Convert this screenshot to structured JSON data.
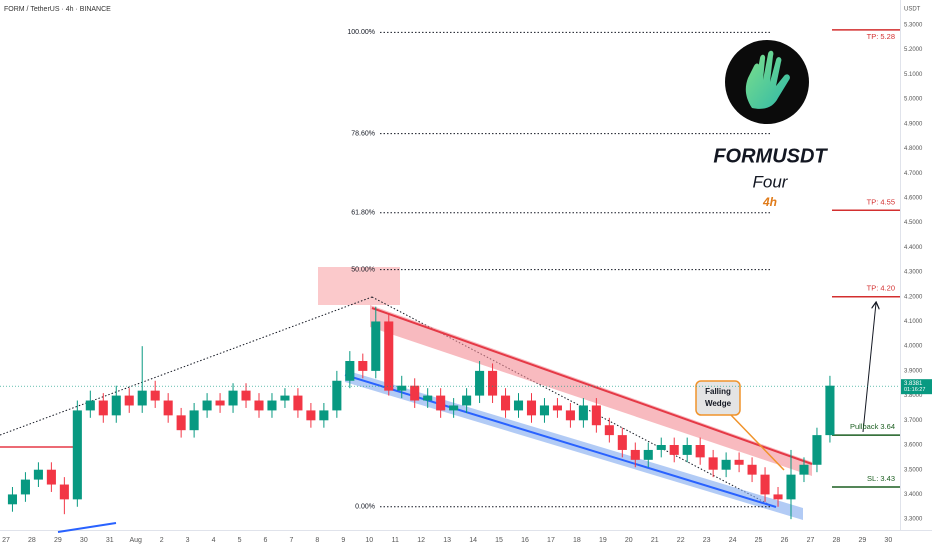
{
  "chart_data": {
    "type": "candlestick",
    "title": "FORM / TetherUS · 4h · BINANCE",
    "currency": "USDT",
    "symbol_title": "FORMUSDT",
    "subtitle": "Four",
    "timeframe": "4h",
    "callout_lines": [
      "Falling",
      "Wedge"
    ],
    "up_color": "#089981",
    "down_color": "#f23645",
    "grid": false,
    "xlim": [
      -0.23,
      34.45
    ],
    "ylim": [
      3.256,
      5.401
    ],
    "xticks": [
      {
        "value": 0,
        "label": "27"
      },
      {
        "value": 1,
        "label": "28"
      },
      {
        "value": 2,
        "label": "29"
      },
      {
        "value": 3,
        "label": "30"
      },
      {
        "value": 4,
        "label": "31"
      },
      {
        "value": 5,
        "label": "Aug"
      },
      {
        "value": 6,
        "label": "2"
      },
      {
        "value": 7,
        "label": "3"
      },
      {
        "value": 8,
        "label": "4"
      },
      {
        "value": 9,
        "label": "5"
      },
      {
        "value": 10,
        "label": "6"
      },
      {
        "value": 11,
        "label": "7"
      },
      {
        "value": 12,
        "label": "8"
      },
      {
        "value": 13,
        "label": "9"
      },
      {
        "value": 14,
        "label": "10"
      },
      {
        "value": 15,
        "label": "11"
      },
      {
        "value": 16,
        "label": "12"
      },
      {
        "value": 17,
        "label": "13"
      },
      {
        "value": 18,
        "label": "14"
      },
      {
        "value": 19,
        "label": "15"
      },
      {
        "value": 20,
        "label": "16"
      },
      {
        "value": 21,
        "label": "17"
      },
      {
        "value": 22,
        "label": "18"
      },
      {
        "value": 23,
        "label": "19"
      },
      {
        "value": 24,
        "label": "20"
      },
      {
        "value": 25,
        "label": "21"
      },
      {
        "value": 26,
        "label": "22"
      },
      {
        "value": 27,
        "label": "23"
      },
      {
        "value": 28,
        "label": "24"
      },
      {
        "value": 29,
        "label": "25"
      },
      {
        "value": 30,
        "label": "26"
      },
      {
        "value": 31,
        "label": "27"
      },
      {
        "value": 32,
        "label": "28"
      },
      {
        "value": 33,
        "label": "29"
      },
      {
        "value": 34,
        "label": "30"
      }
    ],
    "yticks": [
      {
        "value": 5.3,
        "label": "5.3000"
      },
      {
        "value": 5.2,
        "label": "5.2000"
      },
      {
        "value": 5.1,
        "label": "5.1000"
      },
      {
        "value": 5.0,
        "label": "5.0000"
      },
      {
        "value": 4.9,
        "label": "4.9000"
      },
      {
        "value": 4.8,
        "label": "4.8000"
      },
      {
        "value": 4.7,
        "label": "4.7000"
      },
      {
        "value": 4.6,
        "label": "4.6000"
      },
      {
        "value": 4.5,
        "label": "4.5000"
      },
      {
        "value": 4.4,
        "label": "4.4000"
      },
      {
        "value": 4.3,
        "label": "4.3000"
      },
      {
        "value": 4.2,
        "label": "4.2000"
      },
      {
        "value": 4.1,
        "label": "4.1000"
      },
      {
        "value": 4.0,
        "label": "4.0000"
      },
      {
        "value": 3.9,
        "label": "3.9000"
      },
      {
        "value": 3.8,
        "label": "3.8000"
      },
      {
        "value": 3.7,
        "label": "3.7000"
      },
      {
        "value": 3.6,
        "label": "3.6000"
      },
      {
        "value": 3.5,
        "label": "3.5000"
      },
      {
        "value": 3.4,
        "label": "3.4000"
      },
      {
        "value": 3.3,
        "label": "3.3000"
      }
    ],
    "x": [
      0.25,
      0.75,
      1.25,
      1.75,
      2.25,
      2.75,
      3.25,
      3.75,
      4.25,
      4.75,
      5.25,
      5.75,
      6.25,
      6.75,
      7.25,
      7.75,
      8.25,
      8.75,
      9.25,
      9.75,
      10.25,
      10.75,
      11.25,
      11.75,
      12.25,
      12.75,
      13.25,
      13.75,
      14.25,
      14.75,
      15.25,
      15.75,
      16.25,
      16.75,
      17.25,
      17.75,
      18.25,
      18.75,
      19.25,
      19.75,
      20.25,
      20.75,
      21.25,
      21.75,
      22.25,
      22.75,
      23.25,
      23.75,
      24.25,
      24.75,
      25.25,
      25.75,
      26.25,
      26.75,
      27.25,
      27.75,
      28.25,
      28.75,
      29.25,
      29.75,
      30.25,
      30.75,
      31.25,
      31.75
    ],
    "open": [
      3.36,
      3.4,
      3.46,
      3.5,
      3.44,
      3.38,
      3.74,
      3.78,
      3.72,
      3.8,
      3.76,
      3.82,
      3.78,
      3.72,
      3.66,
      3.74,
      3.78,
      3.76,
      3.82,
      3.78,
      3.74,
      3.78,
      3.8,
      3.74,
      3.7,
      3.74,
      3.86,
      3.94,
      3.9,
      4.1,
      3.82,
      3.84,
      3.78,
      3.8,
      3.74,
      3.76,
      3.8,
      3.9,
      3.8,
      3.74,
      3.78,
      3.72,
      3.76,
      3.74,
      3.7,
      3.76,
      3.68,
      3.64,
      3.58,
      3.54,
      3.58,
      3.6,
      3.56,
      3.6,
      3.55,
      3.5,
      3.54,
      3.52,
      3.48,
      3.4,
      3.38,
      3.48,
      3.52,
      3.64
    ],
    "high": [
      3.43,
      3.49,
      3.53,
      3.53,
      3.47,
      3.78,
      3.82,
      3.81,
      3.84,
      3.83,
      4.0,
      3.86,
      3.81,
      3.75,
      3.77,
      3.81,
      3.81,
      3.85,
      3.85,
      3.81,
      3.81,
      3.83,
      3.83,
      3.77,
      3.77,
      3.9,
      3.98,
      3.97,
      4.16,
      4.13,
      3.88,
      3.87,
      3.83,
      3.83,
      3.79,
      3.83,
      3.94,
      3.93,
      3.83,
      3.81,
      3.81,
      3.79,
      3.79,
      3.77,
      3.79,
      3.79,
      3.71,
      3.67,
      3.61,
      3.61,
      3.63,
      3.63,
      3.63,
      3.63,
      3.58,
      3.57,
      3.57,
      3.55,
      3.51,
      3.43,
      3.58,
      3.55,
      3.67,
      3.88
    ],
    "low": [
      3.33,
      3.37,
      3.43,
      3.41,
      3.32,
      3.35,
      3.71,
      3.69,
      3.69,
      3.73,
      3.73,
      3.75,
      3.69,
      3.63,
      3.63,
      3.71,
      3.73,
      3.73,
      3.75,
      3.71,
      3.71,
      3.75,
      3.71,
      3.67,
      3.67,
      3.71,
      3.83,
      3.87,
      3.87,
      3.8,
      3.79,
      3.75,
      3.75,
      3.71,
      3.71,
      3.73,
      3.77,
      3.77,
      3.71,
      3.71,
      3.69,
      3.69,
      3.71,
      3.67,
      3.67,
      3.65,
      3.61,
      3.55,
      3.51,
      3.51,
      3.55,
      3.53,
      3.53,
      3.52,
      3.47,
      3.47,
      3.49,
      3.45,
      3.37,
      3.35,
      3.3,
      3.45,
      3.49,
      3.61
    ],
    "close": [
      3.4,
      3.46,
      3.5,
      3.44,
      3.38,
      3.74,
      3.78,
      3.72,
      3.8,
      3.76,
      3.82,
      3.78,
      3.72,
      3.66,
      3.74,
      3.78,
      3.76,
      3.82,
      3.78,
      3.74,
      3.78,
      3.8,
      3.74,
      3.7,
      3.74,
      3.86,
      3.94,
      3.9,
      4.1,
      3.82,
      3.84,
      3.78,
      3.8,
      3.74,
      3.76,
      3.8,
      3.9,
      3.8,
      3.74,
      3.78,
      3.72,
      3.76,
      3.74,
      3.7,
      3.76,
      3.68,
      3.64,
      3.58,
      3.54,
      3.58,
      3.6,
      3.56,
      3.6,
      3.55,
      3.5,
      3.54,
      3.52,
      3.48,
      3.4,
      3.38,
      3.48,
      3.52,
      3.64,
      3.84
    ],
    "last_price": 3.8381,
    "countdown": "01:16:27",
    "fib_levels": [
      {
        "label": "100.00%",
        "price": 5.27
      },
      {
        "label": "78.60%",
        "price": 4.86
      },
      {
        "label": "61.80%",
        "price": 4.54
      },
      {
        "label": "50.00%",
        "price": 4.31
      },
      {
        "label": "0.00%",
        "price": 3.35
      }
    ],
    "trade_levels": [
      {
        "label": "TP: 5.28",
        "value": 5.28,
        "color": "#d32f2f",
        "label_side": "below"
      },
      {
        "label": "TP: 4.55",
        "value": 4.55,
        "color": "#d32f2f",
        "label_side": "above"
      },
      {
        "label": "TP: 4.20",
        "value": 4.2,
        "color": "#d32f2f",
        "label_side": "above"
      },
      {
        "label": "Pullback 3.64",
        "value": 3.64,
        "color": "#1b5e20",
        "label_side": "above"
      },
      {
        "label": "SL: 3.43",
        "value": 3.43,
        "color": "#1b5e20",
        "label_side": "above"
      }
    ]
  }
}
